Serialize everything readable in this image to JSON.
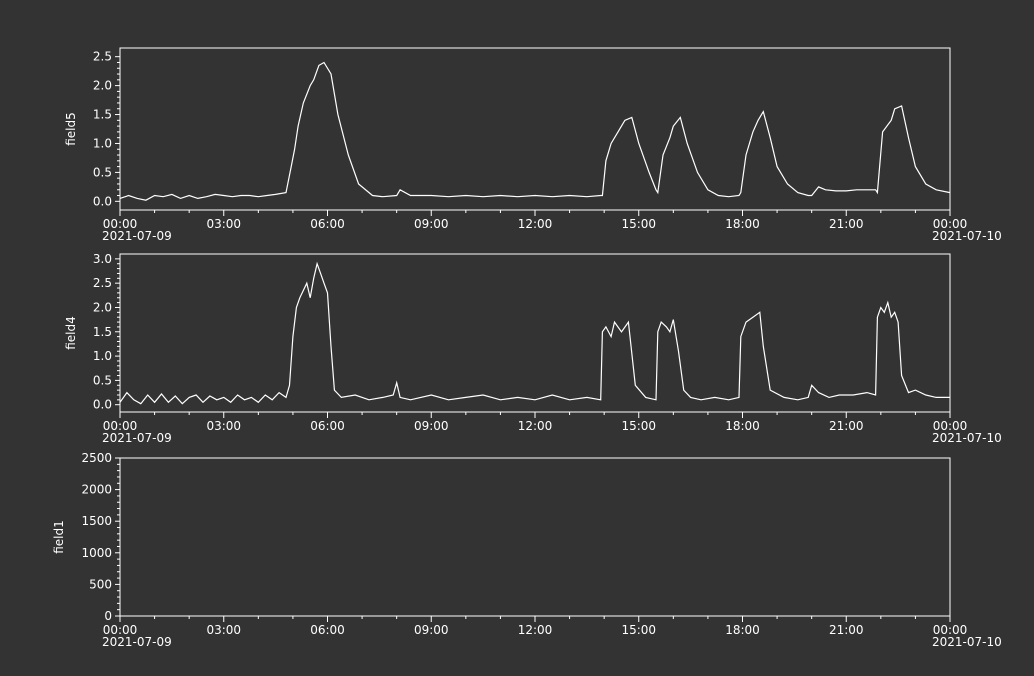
{
  "colors": {
    "background": "#333333",
    "panel": "#333333",
    "foreground": "#ffffff",
    "line": "#ffffff"
  },
  "chart_data": [
    {
      "type": "line",
      "ylabel": "field5",
      "ylim": [
        -0.15,
        2.65
      ],
      "yticks": [
        0.0,
        0.5,
        1.0,
        1.5,
        2.0,
        2.5
      ],
      "ytick_labels": [
        "0.0",
        "0.5",
        "1.0",
        "1.5",
        "2.0",
        "2.5"
      ],
      "x_ticks": [
        "00:00",
        "03:00",
        "06:00",
        "09:00",
        "12:00",
        "15:00",
        "18:00",
        "21:00",
        "00:00"
      ],
      "x_dates": [
        "2021-07-09",
        "2021-07-10"
      ],
      "xlim_hours": [
        0,
        24
      ],
      "series": [
        {
          "x": [
            0,
            0.25,
            0.5,
            0.75,
            1,
            1.25,
            1.5,
            1.75,
            2,
            2.25,
            2.5,
            2.75,
            3,
            3.25,
            3.5,
            3.75,
            4,
            4.25,
            4.5,
            4.8,
            4.95,
            5.05,
            5.15,
            5.3,
            5.5,
            5.6,
            5.75,
            5.9,
            6.1,
            6.3,
            6.6,
            6.9,
            7.3,
            7.6,
            8.0,
            8.1,
            8.4,
            9,
            9.5,
            10,
            10.5,
            11,
            11.5,
            12,
            12.5,
            13,
            13.5,
            13.9,
            13.95,
            14.05,
            14.2,
            14.4,
            14.6,
            14.8,
            15.0,
            15.3,
            15.5,
            15.55,
            15.7,
            15.9,
            16.0,
            16.2,
            16.4,
            16.7,
            17.0,
            17.3,
            17.6,
            17.9,
            17.95,
            18.1,
            18.3,
            18.45,
            18.6,
            18.8,
            19.0,
            19.3,
            19.6,
            19.9,
            20.0,
            20.2,
            20.4,
            20.7,
            21.0,
            21.3,
            21.6,
            21.85,
            21.9,
            22.05,
            22.3,
            22.4,
            22.6,
            22.8,
            23.0,
            23.3,
            23.6,
            24
          ],
          "y": [
            0.05,
            0.1,
            0.05,
            0.02,
            0.1,
            0.08,
            0.12,
            0.05,
            0.1,
            0.05,
            0.08,
            0.12,
            0.1,
            0.08,
            0.1,
            0.1,
            0.08,
            0.1,
            0.12,
            0.15,
            0.6,
            0.9,
            1.3,
            1.7,
            2.0,
            2.1,
            2.35,
            2.4,
            2.2,
            1.5,
            0.8,
            0.3,
            0.1,
            0.08,
            0.1,
            0.2,
            0.1,
            0.1,
            0.08,
            0.1,
            0.08,
            0.1,
            0.08,
            0.1,
            0.08,
            0.1,
            0.08,
            0.1,
            0.1,
            0.7,
            1.0,
            1.2,
            1.4,
            1.45,
            1.0,
            0.5,
            0.2,
            0.15,
            0.8,
            1.1,
            1.3,
            1.45,
            1.0,
            0.5,
            0.2,
            0.1,
            0.08,
            0.1,
            0.15,
            0.8,
            1.2,
            1.4,
            1.55,
            1.1,
            0.6,
            0.3,
            0.15,
            0.1,
            0.1,
            0.25,
            0.2,
            0.18,
            0.18,
            0.2,
            0.2,
            0.2,
            0.15,
            1.2,
            1.4,
            1.6,
            1.65,
            1.1,
            0.6,
            0.3,
            0.2,
            0.15
          ]
        }
      ]
    },
    {
      "type": "line",
      "ylabel": "field4",
      "ylim": [
        -0.15,
        3.1
      ],
      "yticks": [
        0.0,
        0.5,
        1.0,
        1.5,
        2.0,
        2.5,
        3.0
      ],
      "ytick_labels": [
        "0.0",
        "0.5",
        "1.0",
        "1.5",
        "2.0",
        "2.5",
        "3.0"
      ],
      "x_ticks": [
        "00:00",
        "03:00",
        "06:00",
        "09:00",
        "12:00",
        "15:00",
        "18:00",
        "21:00",
        "00:00"
      ],
      "x_dates": [
        "2021-07-09",
        "2021-07-10"
      ],
      "xlim_hours": [
        0,
        24
      ],
      "series": [
        {
          "x": [
            0,
            0.2,
            0.4,
            0.6,
            0.8,
            1,
            1.2,
            1.4,
            1.6,
            1.8,
            2,
            2.2,
            2.4,
            2.6,
            2.8,
            3,
            3.2,
            3.4,
            3.6,
            3.8,
            4,
            4.2,
            4.4,
            4.6,
            4.8,
            4.9,
            5.0,
            5.1,
            5.2,
            5.4,
            5.5,
            5.6,
            5.7,
            5.8,
            5.9,
            6.0,
            6.1,
            6.2,
            6.4,
            6.8,
            7.2,
            7.6,
            7.9,
            8.0,
            8.1,
            8.4,
            9,
            9.5,
            10,
            10.5,
            11,
            11.5,
            12,
            12.5,
            13,
            13.5,
            13.9,
            13.95,
            14.05,
            14.2,
            14.3,
            14.5,
            14.7,
            14.9,
            15.2,
            15.5,
            15.55,
            15.65,
            15.8,
            15.9,
            16.0,
            16.15,
            16.3,
            16.5,
            16.8,
            17.2,
            17.6,
            17.9,
            17.95,
            18.1,
            18.3,
            18.5,
            18.6,
            18.8,
            19.2,
            19.6,
            19.9,
            20.0,
            20.2,
            20.5,
            20.8,
            21.2,
            21.6,
            21.85,
            21.9,
            22.0,
            22.1,
            22.2,
            22.3,
            22.4,
            22.5,
            22.6,
            22.8,
            23.0,
            23.3,
            23.6,
            24
          ],
          "y": [
            0.05,
            0.25,
            0.1,
            0.02,
            0.2,
            0.05,
            0.22,
            0.05,
            0.18,
            0.02,
            0.15,
            0.2,
            0.05,
            0.18,
            0.1,
            0.15,
            0.05,
            0.2,
            0.1,
            0.15,
            0.05,
            0.2,
            0.1,
            0.25,
            0.15,
            0.4,
            1.4,
            2.0,
            2.2,
            2.5,
            2.2,
            2.6,
            2.9,
            2.7,
            2.5,
            2.3,
            1.2,
            0.3,
            0.15,
            0.2,
            0.1,
            0.15,
            0.2,
            0.45,
            0.15,
            0.1,
            0.2,
            0.1,
            0.15,
            0.2,
            0.1,
            0.15,
            0.1,
            0.2,
            0.1,
            0.15,
            0.1,
            1.5,
            1.6,
            1.4,
            1.7,
            1.5,
            1.7,
            0.4,
            0.15,
            0.1,
            1.5,
            1.7,
            1.6,
            1.5,
            1.75,
            1.1,
            0.3,
            0.15,
            0.1,
            0.15,
            0.1,
            0.15,
            1.4,
            1.7,
            1.8,
            1.9,
            1.2,
            0.3,
            0.15,
            0.1,
            0.15,
            0.4,
            0.25,
            0.15,
            0.2,
            0.2,
            0.25,
            0.2,
            1.8,
            2.0,
            1.9,
            2.1,
            1.8,
            1.9,
            1.7,
            0.6,
            0.25,
            0.3,
            0.2,
            0.15,
            0.15
          ]
        }
      ]
    },
    {
      "type": "line",
      "ylabel": "field1",
      "ylim": [
        0,
        2500
      ],
      "yticks": [
        0,
        500,
        1000,
        1500,
        2000,
        2500
      ],
      "ytick_labels": [
        "0",
        "500",
        "1000",
        "1500",
        "2000",
        "2500"
      ],
      "x_ticks": [
        "00:00",
        "03:00",
        "06:00",
        "09:00",
        "12:00",
        "15:00",
        "18:00",
        "21:00",
        "00:00"
      ],
      "x_dates": [
        "2021-07-09",
        "2021-07-10"
      ],
      "xlim_hours": [
        0,
        24
      ],
      "series": []
    }
  ]
}
